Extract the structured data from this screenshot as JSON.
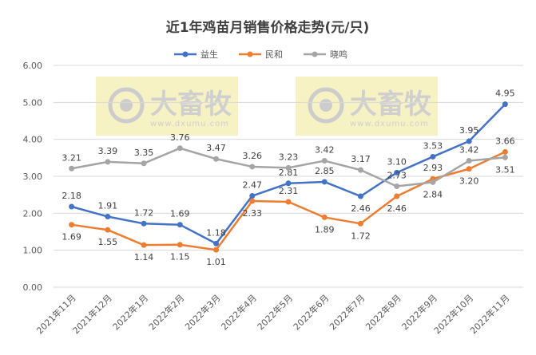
{
  "chart_data": {
    "type": "line",
    "title": "近1年鸡苗月销售价格走势(元/只)",
    "categories": [
      "2021年11月",
      "2021年12月",
      "2022年1月",
      "2022年2月",
      "2022年3月",
      "2022年4月",
      "2022年5月",
      "2022年6月",
      "2022年7月",
      "2022年8月",
      "2022年9月",
      "2022年10月",
      "2022年11月"
    ],
    "series": [
      {
        "name": "益生",
        "color": "#4472C4",
        "values": [
          2.18,
          1.91,
          1.72,
          1.69,
          1.18,
          2.47,
          2.81,
          2.85,
          2.46,
          3.1,
          3.53,
          3.95,
          4.95
        ]
      },
      {
        "name": "民和",
        "color": "#ED7D31",
        "values": [
          1.69,
          1.55,
          1.14,
          1.15,
          1.01,
          2.33,
          2.31,
          1.89,
          1.72,
          2.46,
          2.93,
          3.2,
          3.66
        ]
      },
      {
        "name": "晓鸣",
        "color": "#A5A5A5",
        "values": [
          3.21,
          3.39,
          3.35,
          3.76,
          3.47,
          3.26,
          3.23,
          3.42,
          3.17,
          2.73,
          2.84,
          3.42,
          3.51
        ]
      }
    ],
    "ylim": [
      0,
      6
    ],
    "yticks": [
      "0.00",
      "1.00",
      "2.00",
      "3.00",
      "4.00",
      "5.00",
      "6.00"
    ],
    "grid": true,
    "legend": "top",
    "label_pos": [
      [
        "above",
        "above",
        "above",
        "above",
        "above",
        "above",
        "above",
        "above",
        "below",
        "above",
        "above",
        "above",
        "above"
      ],
      [
        "below",
        "below",
        "below",
        "below",
        "below",
        "above",
        "above",
        "below",
        "below",
        "below",
        "above",
        "below",
        "above"
      ],
      [
        "above",
        "above",
        "above",
        "above",
        "above",
        "above",
        "above",
        "above",
        "above",
        "below",
        "below",
        "above",
        "below"
      ]
    ]
  },
  "watermark": {
    "brand": "大畜牧",
    "url": "www.dxumu.com"
  }
}
